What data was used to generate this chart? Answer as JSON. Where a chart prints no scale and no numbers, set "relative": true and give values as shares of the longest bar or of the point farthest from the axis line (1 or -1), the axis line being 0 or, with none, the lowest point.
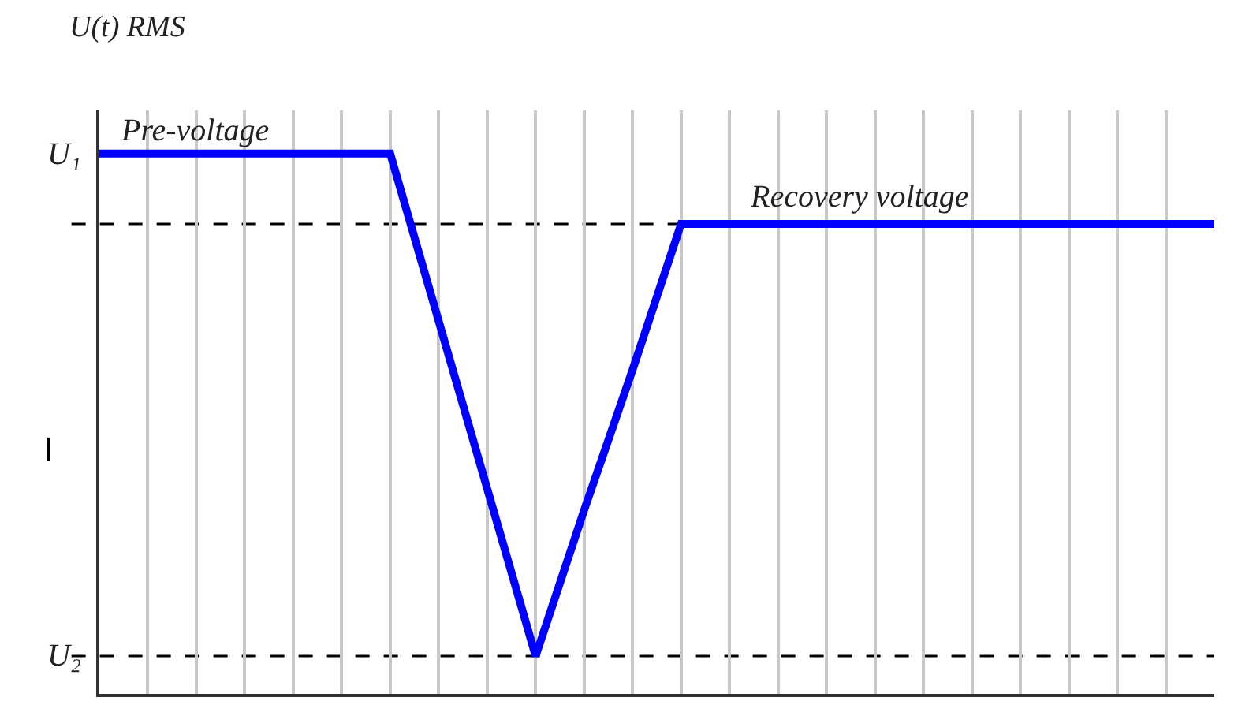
{
  "chart_data": {
    "type": "line",
    "relative": true,
    "ylabel": "U(t) RMS",
    "categories": [
      null,
      null,
      null,
      null,
      null,
      null,
      null,
      null,
      null,
      null,
      null,
      null,
      null,
      null,
      null,
      null,
      null,
      null,
      null,
      null,
      null,
      null,
      null,
      null
    ],
    "series": [
      {
        "color": "#0000ff",
        "values": [
          1,
          1,
          1,
          1,
          1,
          1,
          1,
          0.69,
          0.38,
          0.07,
          0.34,
          0.6,
          0.87,
          0.87,
          0.87,
          0.87,
          0.87,
          0.87,
          0.87,
          0.87,
          0.87,
          0.87,
          0.87,
          0.87
        ]
      }
    ],
    "ref_lines": [
      {
        "axis": "y",
        "value": 0.87,
        "label": null,
        "color": "#000000",
        "line_style": "dashed"
      },
      {
        "axis": "y",
        "value": 0.07,
        "label": "U₂",
        "color": "#000000",
        "line_style": "dashed"
      }
    ],
    "grid": "x",
    "marker": "none",
    "line_style": "solid",
    "annotations": [
      "U₁",
      "Pre-voltage",
      "Recovery voltage",
      "I"
    ]
  }
}
